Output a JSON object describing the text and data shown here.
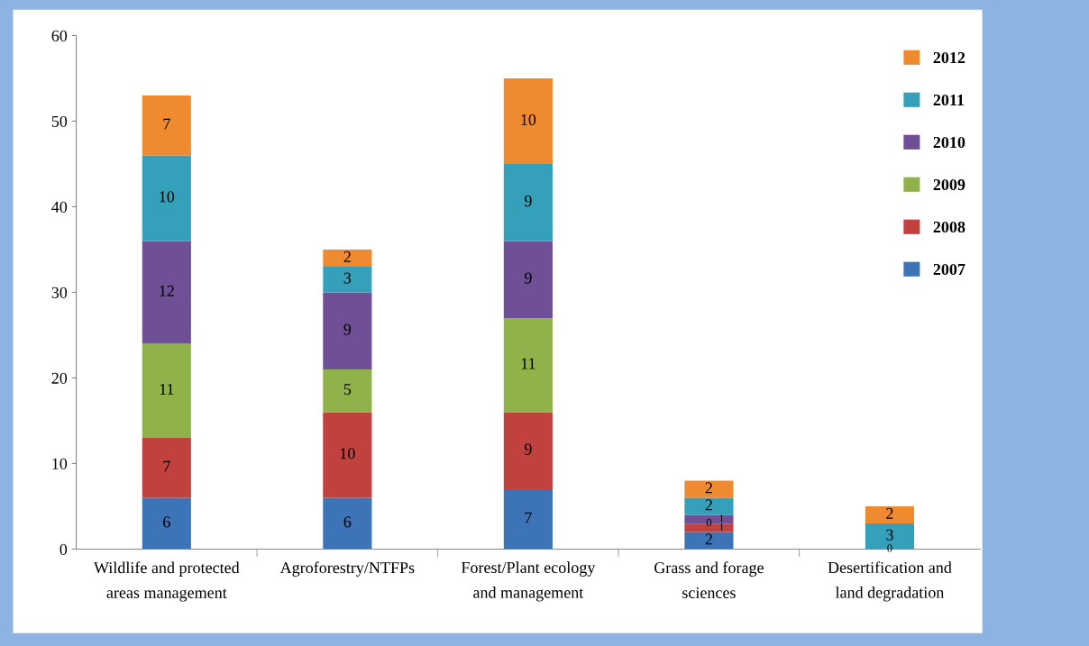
{
  "chart_data": {
    "type": "bar",
    "stacked": true,
    "legend": "top right",
    "grid": false,
    "categories": [
      "Wildlife and protected\nareas management",
      "Agroforestry/NTFPs",
      "Forest/Plant ecology\nand management",
      "Grass and forage\nsciences",
      "Desertification and\nland degradation"
    ],
    "ylim": [
      0,
      60
    ],
    "yticks": [
      0,
      10,
      20,
      30,
      40,
      50,
      60
    ],
    "series": [
      {
        "name": "2007",
        "color": "#3d74b8",
        "values": [
          6,
          6,
          7,
          2,
          0
        ],
        "value_labels": [
          "6",
          "6",
          "7",
          "2",
          "0"
        ]
      },
      {
        "name": "2008",
        "color": "#c0413e",
        "values": [
          7,
          10,
          9,
          1,
          0
        ],
        "value_labels": [
          "7",
          "10",
          "9",
          "1",
          null
        ]
      },
      {
        "name": "2009",
        "color": "#8fb24a",
        "values": [
          11,
          5,
          11,
          0,
          0
        ],
        "value_labels": [
          "11",
          "5",
          "11",
          "0",
          null
        ]
      },
      {
        "name": "2010",
        "color": "#6f4f96",
        "values": [
          12,
          9,
          9,
          1,
          0
        ],
        "value_labels": [
          "12",
          "9",
          "9",
          "1",
          null
        ]
      },
      {
        "name": "2011",
        "color": "#34a0ba",
        "values": [
          10,
          3,
          9,
          2,
          3
        ],
        "value_labels": [
          "10",
          "3",
          "9",
          "2",
          "3"
        ]
      },
      {
        "name": "2012",
        "color": "#f08a30",
        "values": [
          7,
          2,
          10,
          2,
          2
        ],
        "value_labels": [
          "7",
          "2",
          "10",
          "2",
          "2"
        ]
      }
    ]
  }
}
